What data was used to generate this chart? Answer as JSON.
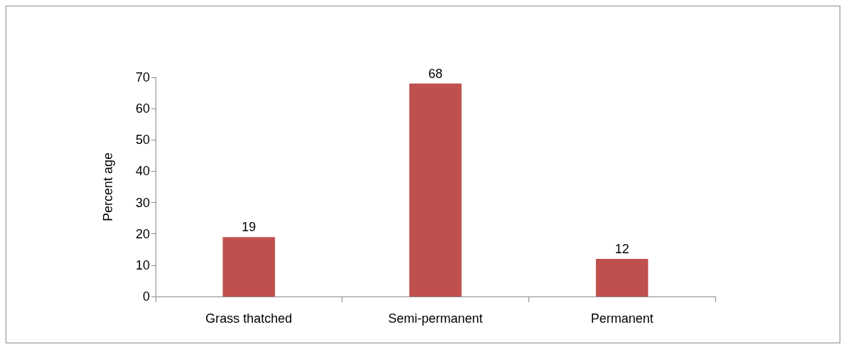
{
  "chart_data": {
    "type": "bar",
    "ylabel": "Percent age",
    "categories": [
      "Grass thatched",
      "Semi-permanent",
      "Permanent"
    ],
    "values": [
      19,
      68,
      12
    ],
    "color": "#c0504d",
    "ylim": [
      0,
      70
    ],
    "yticks": [
      0,
      10,
      20,
      30,
      40,
      50,
      60,
      70
    ],
    "data_labels": true
  }
}
